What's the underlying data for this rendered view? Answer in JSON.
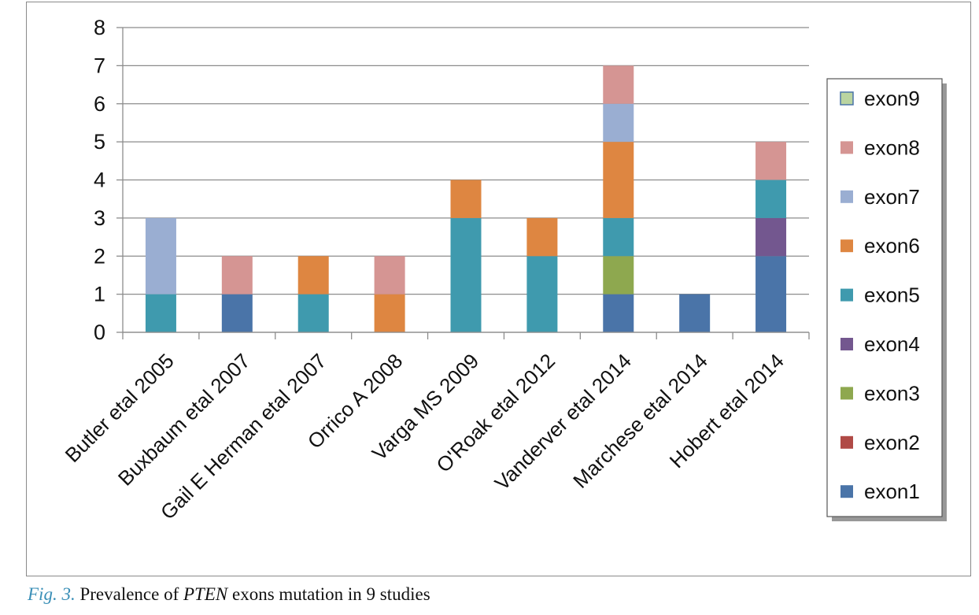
{
  "chart_data": {
    "type": "bar",
    "stacked": true,
    "title": "",
    "xlabel": "",
    "ylabel": "",
    "ylim": [
      0,
      8
    ],
    "yticks": [
      0,
      1,
      2,
      3,
      4,
      5,
      6,
      7,
      8
    ],
    "grid": true,
    "legend_position": "right",
    "categories": [
      "Butler etal 2005",
      "Buxbaum etal 2007",
      "Gail E Herman etal 2007",
      "Orrico A 2008",
      "Varga MS 2009",
      "O'Roak etal 2012",
      "Vanderver etal 2014",
      "Marchese etal 2014",
      "Hobert etal 2014"
    ],
    "series": [
      {
        "name": "exon1",
        "color": "#4a74a8",
        "values": [
          0,
          1,
          0,
          0,
          0,
          0,
          1,
          1,
          2
        ]
      },
      {
        "name": "exon2",
        "color": "#b04a46",
        "values": [
          0,
          0,
          0,
          0,
          0,
          0,
          0,
          0,
          0
        ]
      },
      {
        "name": "exon3",
        "color": "#8ea84f",
        "values": [
          0,
          0,
          0,
          0,
          0,
          0,
          1,
          0,
          0
        ]
      },
      {
        "name": "exon4",
        "color": "#73578f",
        "values": [
          0,
          0,
          0,
          0,
          0,
          0,
          0,
          0,
          1
        ]
      },
      {
        "name": "exon5",
        "color": "#3f9aae",
        "values": [
          1,
          0,
          1,
          0,
          3,
          2,
          1,
          0,
          1
        ]
      },
      {
        "name": "exon6",
        "color": "#de8641",
        "values": [
          0,
          0,
          1,
          1,
          1,
          1,
          2,
          0,
          0
        ]
      },
      {
        "name": "exon7",
        "color": "#9aaed2",
        "values": [
          2,
          0,
          0,
          0,
          0,
          0,
          1,
          0,
          0
        ]
      },
      {
        "name": "exon8",
        "color": "#d59593",
        "values": [
          0,
          1,
          0,
          1,
          0,
          0,
          1,
          0,
          1
        ]
      },
      {
        "name": "exon9",
        "color": "#bad4a0",
        "values": [
          0,
          0,
          0,
          0,
          0,
          0,
          0,
          0,
          0
        ]
      }
    ]
  },
  "caption": {
    "fig_label": "Fig. 3.",
    "text_before": "Prevalence of",
    "gene": "PTEN",
    "text_after": "exons mutation in 9 studies"
  }
}
